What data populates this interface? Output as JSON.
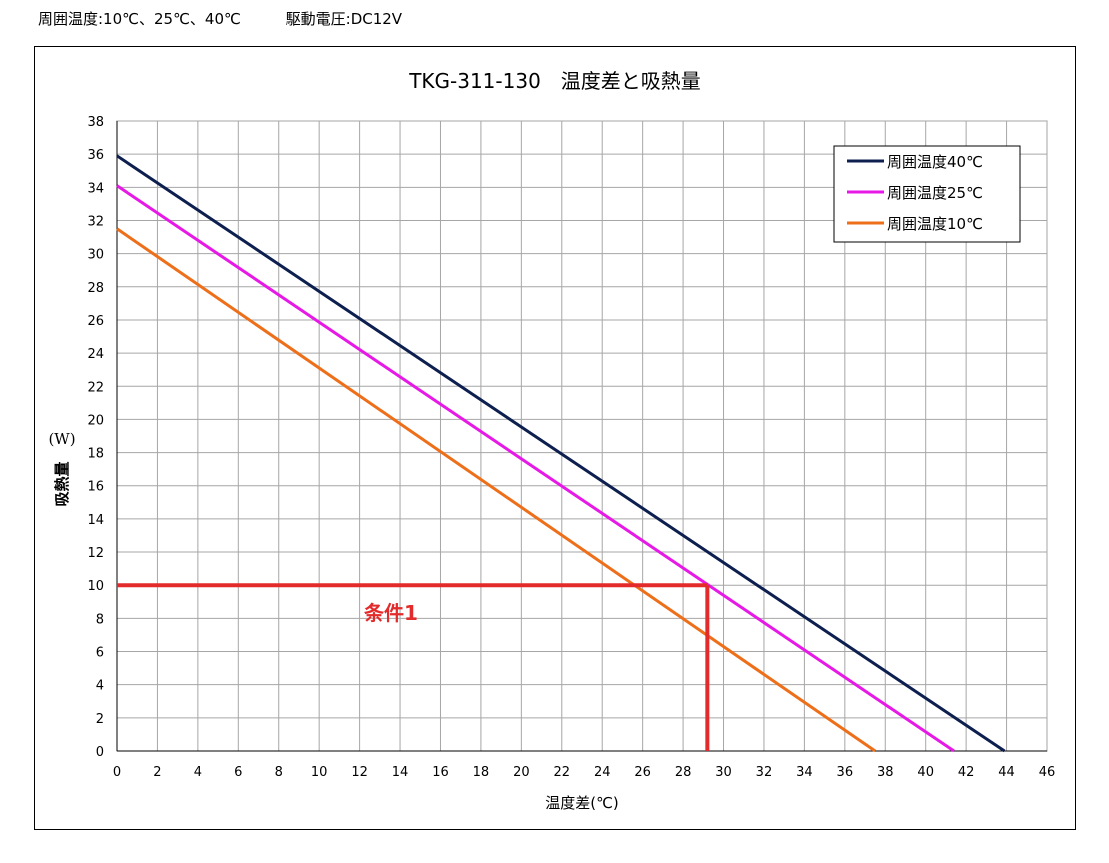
{
  "header": {
    "ambient": "周囲温度:10℃、25℃、40℃",
    "voltage": "駆動電圧:DC12V"
  },
  "chart_data": {
    "type": "line",
    "title": "TKG-311-130　温度差と吸熱量",
    "xlabel": "温度差(℃)",
    "ylabel": "吸熱量",
    "yunit": "(W)",
    "xlim": [
      0,
      46
    ],
    "ylim": [
      0,
      38
    ],
    "xticks": [
      "0",
      "2",
      "4",
      "6",
      "8",
      "10",
      "12",
      "14",
      "16",
      "18",
      "20",
      "22",
      "24",
      "26",
      "28",
      "30",
      "32",
      "34",
      "36",
      "38",
      "40",
      "42",
      "44",
      "46"
    ],
    "yticks": [
      "0",
      "2",
      "4",
      "6",
      "8",
      "10",
      "12",
      "14",
      "16",
      "18",
      "20",
      "22",
      "24",
      "26",
      "28",
      "30",
      "32",
      "34",
      "36",
      "38"
    ],
    "grid": true,
    "legend_position": "top-right",
    "series": [
      {
        "name": "周囲温度40℃",
        "color": "#0d1f4f",
        "x": [
          0,
          43.9
        ],
        "y": [
          35.9,
          0
        ]
      },
      {
        "name": "周囲温度25℃",
        "color": "#e619e6",
        "x": [
          0,
          41.4
        ],
        "y": [
          34.1,
          0
        ]
      },
      {
        "name": "周囲温度10℃",
        "color": "#ee6f1a",
        "x": [
          0,
          37.5
        ],
        "y": [
          31.5,
          0
        ]
      }
    ],
    "annotation": {
      "label": "条件1",
      "color": "#e32b2b",
      "x": 29.2,
      "y": 10
    }
  }
}
